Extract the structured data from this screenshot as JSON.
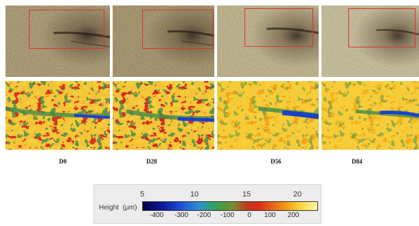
{
  "panels": [
    {
      "day": "D0"
    },
    {
      "day": "D28"
    },
    {
      "day": "D56"
    },
    {
      "day": "D84"
    }
  ],
  "legend": {
    "top_ticks": [
      "5",
      "10",
      "15",
      "20"
    ],
    "label": "Height",
    "unit": "(µm)",
    "bottom_ticks": [
      "-400",
      "-300",
      "-200",
      "-100",
      "0",
      "100",
      "200"
    ]
  },
  "colors": {
    "roi": "#d8332c",
    "skin_light": "#c8b98a",
    "skin_dark": "#5e4a32",
    "heat_red": "#d92a1a",
    "heat_yellow": "#f8d43a",
    "heat_blue": "#1c3fd0",
    "heat_green": "#4c8a3a"
  }
}
